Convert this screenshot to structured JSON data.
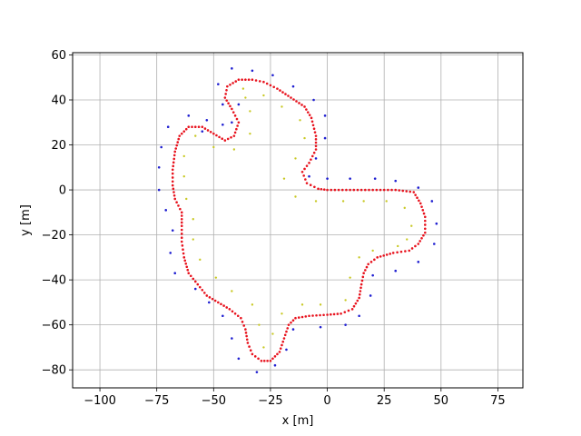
{
  "chart_data": {
    "type": "scatter",
    "title": "",
    "xlabel": "x [m]",
    "ylabel": "y [m]",
    "xlim": [
      -112,
      86
    ],
    "ylim": [
      -88,
      61
    ],
    "xticks": [
      -100,
      -75,
      -50,
      -25,
      0,
      25,
      50,
      75
    ],
    "yticks": [
      -80,
      -60,
      -40,
      -20,
      0,
      20,
      40,
      60
    ],
    "xtick_labels": [
      "−100",
      "−75",
      "−50",
      "−25",
      "0",
      "25",
      "50",
      "75"
    ],
    "ytick_labels": [
      "−80",
      "−60",
      "−40",
      "−20",
      "0",
      "20",
      "40",
      "60"
    ],
    "grid": true,
    "colors": {
      "path": "#e8121d",
      "outer": "#1f1fd1",
      "inner": "#c9c925",
      "grid": "#b0b0b0"
    },
    "series": [
      {
        "style": "path",
        "points": [
          [
            0,
            0
          ],
          [
            10,
            0
          ],
          [
            20,
            0
          ],
          [
            30,
            0
          ],
          [
            38,
            -1
          ],
          [
            41,
            -6
          ],
          [
            43,
            -12
          ],
          [
            43,
            -19
          ],
          [
            40,
            -24
          ],
          [
            36,
            -27
          ],
          [
            29,
            -28
          ],
          [
            22,
            -30
          ],
          [
            18,
            -33
          ],
          [
            16,
            -37
          ],
          [
            15,
            -42
          ],
          [
            14,
            -48
          ],
          [
            11,
            -53
          ],
          [
            6,
            -55
          ],
          [
            0,
            -55.5
          ],
          [
            -8,
            -56
          ],
          [
            -14,
            -57
          ],
          [
            -17,
            -60
          ],
          [
            -19,
            -66
          ],
          [
            -21,
            -72
          ],
          [
            -25,
            -76
          ],
          [
            -29,
            -76
          ],
          [
            -33,
            -73
          ],
          [
            -35,
            -68
          ],
          [
            -36,
            -62
          ],
          [
            -38,
            -57
          ],
          [
            -43,
            -53
          ],
          [
            -48,
            -50
          ],
          [
            -53,
            -47
          ],
          [
            -57,
            -42
          ],
          [
            -61,
            -37
          ],
          [
            -63,
            -30
          ],
          [
            -64,
            -23
          ],
          [
            -64,
            -16
          ],
          [
            -64,
            -10
          ],
          [
            -67,
            -4
          ],
          [
            -68,
            2
          ],
          [
            -68,
            9
          ],
          [
            -67,
            17
          ],
          [
            -65,
            24
          ],
          [
            -61,
            28
          ],
          [
            -55,
            28
          ],
          [
            -50,
            25
          ],
          [
            -45,
            22
          ],
          [
            -41,
            24
          ],
          [
            -39,
            30
          ],
          [
            -42,
            36
          ],
          [
            -45,
            41
          ],
          [
            -44,
            46
          ],
          [
            -39,
            49
          ],
          [
            -33,
            49
          ],
          [
            -28,
            48
          ],
          [
            -22,
            45
          ],
          [
            -16,
            41
          ],
          [
            -10,
            37
          ],
          [
            -7,
            32
          ],
          [
            -5,
            24
          ],
          [
            -5,
            18
          ],
          [
            -8,
            12
          ],
          [
            -11,
            8
          ],
          [
            -9,
            3
          ],
          [
            -4,
            0.5
          ],
          [
            0,
            0
          ]
        ]
      },
      {
        "style": "outer",
        "points": [
          [
            -42,
            54
          ],
          [
            -33,
            53
          ],
          [
            -24,
            51
          ],
          [
            -15,
            46
          ],
          [
            -6,
            40
          ],
          [
            -1,
            33
          ],
          [
            -1,
            23
          ],
          [
            -5,
            14
          ],
          [
            -8,
            6
          ],
          [
            0,
            5
          ],
          [
            10,
            5
          ],
          [
            21,
            5
          ],
          [
            30,
            4
          ],
          [
            40,
            1
          ],
          [
            46,
            -5
          ],
          [
            48,
            -15
          ],
          [
            47,
            -24
          ],
          [
            40,
            -32
          ],
          [
            30,
            -36
          ],
          [
            20,
            -38
          ],
          [
            19,
            -47
          ],
          [
            14,
            -56
          ],
          [
            8,
            -60
          ],
          [
            -3,
            -61
          ],
          [
            -15,
            -62
          ],
          [
            -18,
            -71
          ],
          [
            -23,
            -78
          ],
          [
            -31,
            -81
          ],
          [
            -39,
            -75
          ],
          [
            -42,
            -66
          ],
          [
            -46,
            -56
          ],
          [
            -52,
            -50
          ],
          [
            -58,
            -44
          ],
          [
            -67,
            -37
          ],
          [
            -69,
            -28
          ],
          [
            -68,
            -18
          ],
          [
            -71,
            -9
          ],
          [
            -74,
            0
          ],
          [
            -74,
            10
          ],
          [
            -73,
            19
          ],
          [
            -70,
            28
          ],
          [
            -61,
            33
          ],
          [
            -53,
            31
          ],
          [
            -48,
            47
          ],
          [
            -46,
            38
          ],
          [
            -39,
            38
          ],
          [
            -42,
            30
          ],
          [
            -46,
            29
          ],
          [
            -55,
            26
          ]
        ]
      },
      {
        "style": "inner",
        "points": [
          [
            -37,
            45
          ],
          [
            -28,
            42
          ],
          [
            -20,
            37
          ],
          [
            -12,
            31
          ],
          [
            -10,
            23
          ],
          [
            -14,
            14
          ],
          [
            -19,
            5
          ],
          [
            -14,
            -3
          ],
          [
            -5,
            -5
          ],
          [
            7,
            -5
          ],
          [
            16,
            -5
          ],
          [
            26,
            -5
          ],
          [
            34,
            -8
          ],
          [
            37,
            -16
          ],
          [
            35,
            -22
          ],
          [
            31,
            -25
          ],
          [
            20,
            -27
          ],
          [
            14,
            -30
          ],
          [
            10,
            -39
          ],
          [
            8,
            -49
          ],
          [
            -3,
            -51
          ],
          [
            -11,
            -51
          ],
          [
            -20,
            -55
          ],
          [
            -24,
            -64
          ],
          [
            -28,
            -70
          ],
          [
            -30,
            -60
          ],
          [
            -33,
            -51
          ],
          [
            -42,
            -45
          ],
          [
            -49,
            -39
          ],
          [
            -56,
            -31
          ],
          [
            -59,
            -22
          ],
          [
            -59,
            -13
          ],
          [
            -62,
            -4
          ],
          [
            -63,
            6
          ],
          [
            -63,
            15
          ],
          [
            -58,
            24
          ],
          [
            -50,
            19
          ],
          [
            -41,
            18
          ],
          [
            -34,
            25
          ],
          [
            -34,
            35
          ],
          [
            -36,
            41
          ]
        ]
      }
    ]
  }
}
